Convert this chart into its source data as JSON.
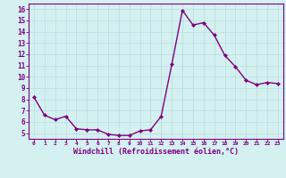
{
  "x": [
    0,
    1,
    2,
    3,
    4,
    5,
    6,
    7,
    8,
    9,
    10,
    11,
    12,
    13,
    14,
    15,
    16,
    17,
    18,
    19,
    20,
    21,
    22,
    23
  ],
  "y": [
    8.2,
    6.6,
    6.2,
    6.5,
    5.4,
    5.3,
    5.3,
    4.9,
    4.8,
    4.8,
    5.2,
    5.3,
    6.5,
    11.1,
    15.9,
    14.6,
    14.8,
    13.7,
    11.9,
    10.9,
    9.7,
    9.3,
    9.5,
    9.4
  ],
  "line_color": "#800080",
  "marker": "D",
  "markersize": 2.0,
  "linewidth": 1.0,
  "xlabel": "Windchill (Refroidissement éolien,°C)",
  "xlabel_color": "#800080",
  "background_color": "#d4f0f0",
  "grid_color": "#b8dede",
  "axis_color": "#800080",
  "tick_color": "#800080",
  "xlim": [
    -0.5,
    23.5
  ],
  "ylim": [
    4.5,
    16.5
  ],
  "yticks": [
    5,
    6,
    7,
    8,
    9,
    10,
    11,
    12,
    13,
    14,
    15,
    16
  ],
  "xticks": [
    0,
    1,
    2,
    3,
    4,
    5,
    6,
    7,
    8,
    9,
    10,
    11,
    12,
    13,
    14,
    15,
    16,
    17,
    18,
    19,
    20,
    21,
    22,
    23
  ]
}
